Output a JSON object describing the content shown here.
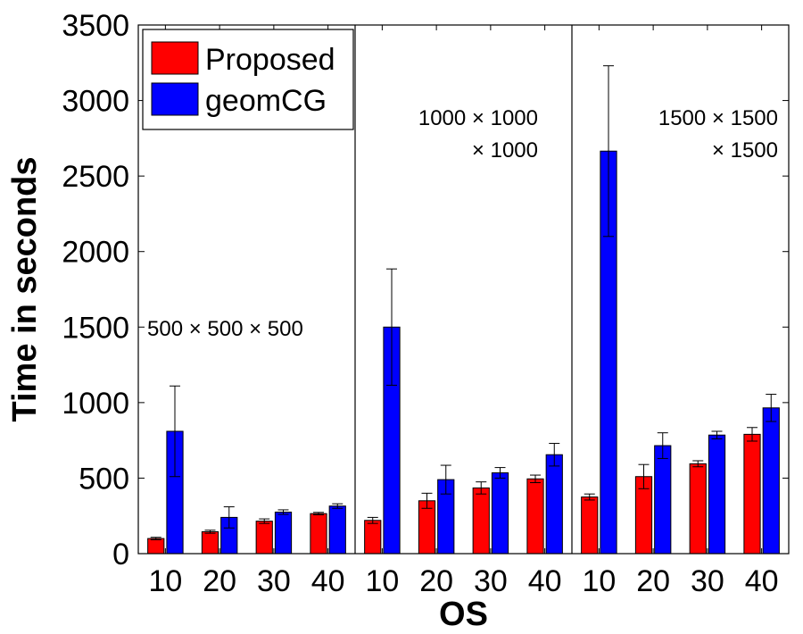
{
  "chart_data": {
    "type": "bar",
    "ylabel": "Time in seconds",
    "xlabel": "OS",
    "ylim": [
      0,
      3500
    ],
    "yticks": [
      0,
      500,
      1000,
      1500,
      2000,
      2500,
      3000,
      3500
    ],
    "grid": false,
    "legend_position": "top-left",
    "panels": [
      {
        "annotation_lines": [
          "500 × 500 × 500"
        ],
        "categories": [
          "10",
          "20",
          "30",
          "40"
        ],
        "series": [
          {
            "name": "Proposed",
            "color": "#ff0000",
            "values": [
              100,
              145,
              215,
              265
            ],
            "errors": [
              8,
              10,
              15,
              8
            ]
          },
          {
            "name": "geomCG",
            "color": "#0000ff",
            "values": [
              810,
              240,
              275,
              315
            ],
            "errors": [
              300,
              70,
              15,
              15
            ]
          }
        ]
      },
      {
        "annotation_lines": [
          "1000 × 1000",
          "× 1000"
        ],
        "categories": [
          "10",
          "20",
          "30",
          "40"
        ],
        "series": [
          {
            "name": "Proposed",
            "color": "#ff0000",
            "values": [
              220,
              350,
              435,
              495
            ],
            "errors": [
              20,
              50,
              40,
              25
            ]
          },
          {
            "name": "geomCG",
            "color": "#0000ff",
            "values": [
              1500,
              490,
              535,
              655
            ],
            "errors": [
              385,
              95,
              35,
              75
            ]
          }
        ]
      },
      {
        "annotation_lines": [
          "1500 × 1500",
          "× 1500"
        ],
        "categories": [
          "10",
          "20",
          "30",
          "40"
        ],
        "series": [
          {
            "name": "Proposed",
            "color": "#ff0000",
            "values": [
              375,
              510,
              595,
              790
            ],
            "errors": [
              20,
              80,
              20,
              45
            ]
          },
          {
            "name": "geomCG",
            "color": "#0000ff",
            "values": [
              2665,
              715,
              785,
              965
            ],
            "errors": [
              565,
              85,
              25,
              90
            ]
          }
        ]
      }
    ],
    "legend": [
      {
        "name": "Proposed",
        "color": "#ff0000"
      },
      {
        "name": "geomCG",
        "color": "#0000ff"
      }
    ]
  }
}
